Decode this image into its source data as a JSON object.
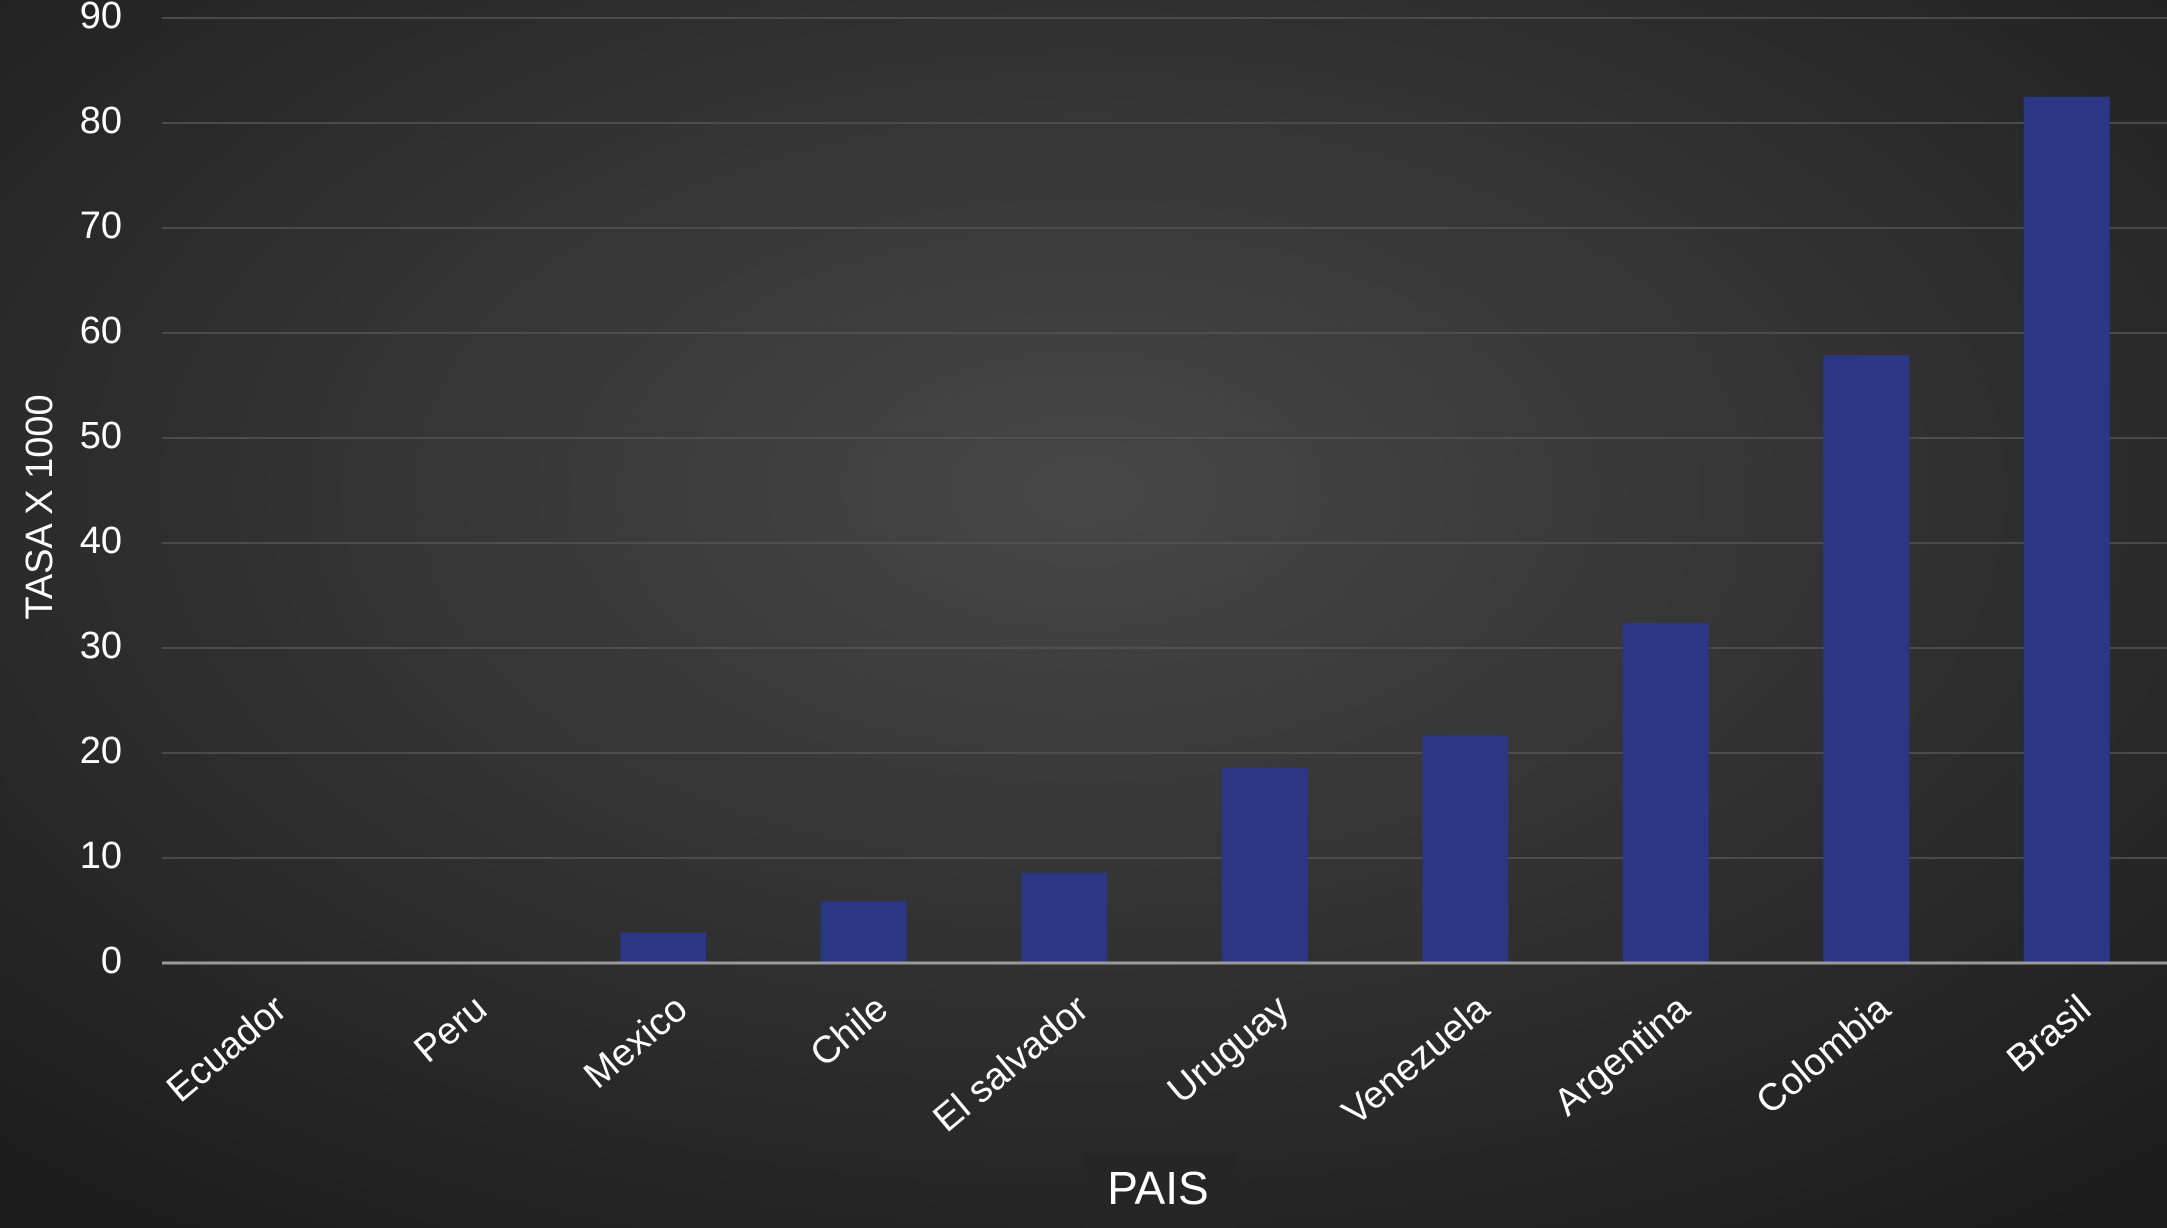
{
  "chart_data": {
    "type": "bar",
    "x_label": "PAIS",
    "y_label": "TASA X 1000",
    "categories": [
      "Ecuador",
      "Peru",
      "Mexico",
      "Chile",
      "El salvador",
      "Uruguay",
      "Venezuela",
      "Argentina",
      "Colombia",
      "Brasil"
    ],
    "values": [
      0,
      0,
      2.9,
      5.9,
      8.6,
      18.6,
      21.7,
      32.4,
      57.9,
      82.5
    ],
    "color": "#2b3785",
    "ylim": [
      0,
      90
    ],
    "yticks": [
      0,
      10,
      20,
      30,
      40,
      50,
      60,
      70,
      80,
      90
    ],
    "grid": true
  }
}
